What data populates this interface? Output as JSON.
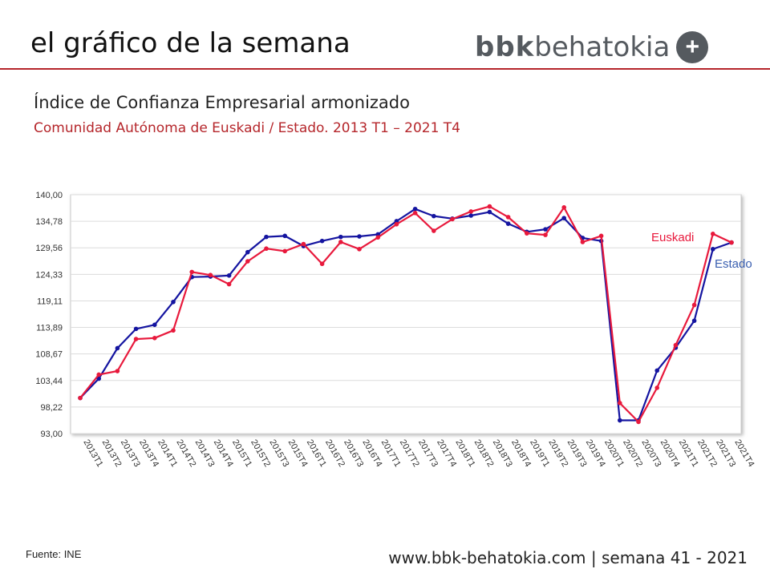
{
  "header": {
    "title": "el gráfico de la semana",
    "logo_bold": "bbk",
    "logo_light": "behatokia",
    "logo_plus": "+"
  },
  "subtitle": "Índice de Confianza Empresarial armonizado",
  "subtitle2": "Comunidad Autónoma de Euskadi / Estado. 2013 T1 – 2021 T4",
  "footer": {
    "source": "Fuente: INE",
    "site": "www.bbk-behatokia.com | semana 41 - 2021"
  },
  "colors": {
    "brand_red": "#b5262b",
    "euskadi": "#e8193c",
    "estado": "#1414a0",
    "logo_gray": "#555a5f"
  },
  "chart_data": {
    "type": "line",
    "title": "",
    "xlabel": "",
    "ylabel": "",
    "ylim": [
      93.0,
      140.0
    ],
    "yticks": [
      "93,00",
      "98,22",
      "103,44",
      "108,67",
      "113,89",
      "119,11",
      "124,33",
      "129,56",
      "134,78",
      "140,00"
    ],
    "grid": true,
    "categories": [
      "2013T1",
      "2013T2",
      "2013T3",
      "2013T4",
      "2014T1",
      "2014T2",
      "2014T3",
      "2014T4",
      "2015T1",
      "2015T2",
      "2015T3",
      "2015T4",
      "2016T1",
      "2016T2",
      "2016T3",
      "2016T4",
      "2017T1",
      "2017T2",
      "2017T3",
      "2017T4",
      "2018T1",
      "2018T2",
      "2018T3",
      "2018T4",
      "2019T1",
      "2019T2",
      "2019T3",
      "2019T4",
      "2020T1",
      "2020T2",
      "2020T3",
      "2020T4",
      "2021T1",
      "2021T2",
      "2021T3",
      "2021T4"
    ],
    "series": [
      {
        "name": "Euskadi",
        "color": "#e8193c",
        "values": [
          100.0,
          104.6,
          105.3,
          111.6,
          111.8,
          113.3,
          124.8,
          124.2,
          122.4,
          126.9,
          129.4,
          128.9,
          130.3,
          126.4,
          130.7,
          129.3,
          131.6,
          134.2,
          136.4,
          132.9,
          135.2,
          136.7,
          137.7,
          135.6,
          132.4,
          132.1,
          137.5,
          130.7,
          131.9,
          99.0,
          95.3,
          102.0,
          110.4,
          118.3,
          132.3,
          130.6
        ],
        "label": "Euskadi"
      },
      {
        "name": "Estado",
        "color": "#1414a0",
        "values": [
          100.0,
          103.8,
          109.8,
          113.6,
          114.4,
          118.9,
          123.8,
          123.9,
          124.1,
          128.7,
          131.7,
          131.9,
          129.9,
          130.9,
          131.7,
          131.8,
          132.2,
          134.8,
          137.2,
          135.8,
          135.3,
          135.9,
          136.6,
          134.3,
          132.7,
          133.2,
          135.4,
          131.5,
          130.9,
          95.6,
          95.6,
          105.4,
          109.9,
          115.2,
          129.3,
          130.6
        ],
        "label": "Estado"
      }
    ]
  }
}
